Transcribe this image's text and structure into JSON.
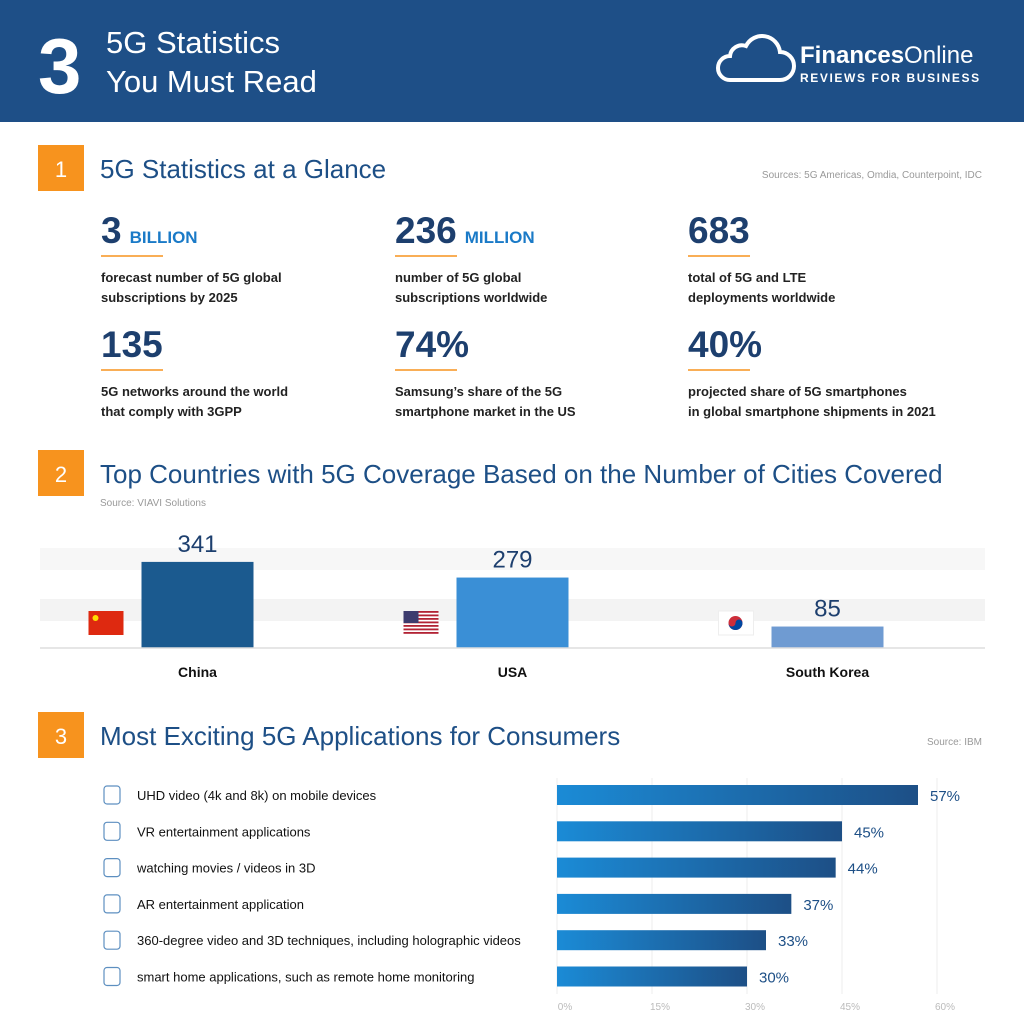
{
  "header": {
    "number": "3",
    "title_lines": [
      "5G Statistics",
      "You Must Read"
    ],
    "logo_bold": "Finances",
    "logo_light": "Online",
    "logo_tagline": "REVIEWS FOR BUSINESS"
  },
  "sections": [
    {
      "number": "1",
      "title": "5G Statistics at a Glance",
      "source": "Sources: 5G Americas, Omdia, Counterpoint, IDC"
    },
    {
      "number": "2",
      "title": "Top Countries with 5G Coverage Based on the Number of Cities Covered",
      "source": "Source: VIAVI Solutions"
    },
    {
      "number": "3",
      "title": "Most Exciting 5G Applications for Consumers",
      "source": "Source: IBM"
    }
  ],
  "stats": [
    {
      "value": "3",
      "unit": "BILLION",
      "description": [
        "forecast number of 5G global",
        "subscriptions by 2025"
      ]
    },
    {
      "value": "236",
      "unit": "MILLION",
      "description": [
        "number of 5G global",
        "subscriptions worldwide"
      ]
    },
    {
      "value": "683",
      "description": [
        "total of 5G and LTE",
        "deployments worldwide"
      ]
    },
    {
      "value": "135",
      "description": [
        "5G networks around the world",
        "that comply with 3GPP"
      ]
    },
    {
      "value": "74%",
      "description": [
        "Samsung’s share of the 5G",
        "smartphone market in the US"
      ]
    },
    {
      "value": "40%",
      "description": [
        "projected share of 5G smartphones",
        "in global smartphone shipments in 2021"
      ]
    }
  ],
  "chart_data": [
    {
      "type": "bar",
      "categories": [
        "China",
        "USA",
        "South Korea"
      ],
      "values": [
        341,
        279,
        85
      ],
      "colors": [
        "#1b5a8f",
        "#3a8fd6",
        "#6f9bd2"
      ],
      "ylim": [
        0,
        400
      ]
    },
    {
      "type": "hbar",
      "categories": [
        "UHD video (4k and 8k) on mobile devices",
        "VR entertainment applications",
        "watching movies / videos in 3D",
        "AR entertainment application",
        "360-degree video and 3D techniques, including holographic videos",
        "smart home applications, such as remote home monitoring"
      ],
      "values": [
        57,
        45,
        44,
        37,
        33,
        30
      ],
      "value_labels": [
        "57%",
        "45%",
        "44%",
        "37%",
        "33%",
        "30%"
      ],
      "xlim": [
        0,
        60
      ],
      "xticks": [
        {
          "value": 0,
          "label": "0%"
        },
        {
          "value": 15,
          "label": "15%"
        },
        {
          "value": 30,
          "label": "30%"
        },
        {
          "value": 45,
          "label": "45%"
        },
        {
          "value": 60,
          "label": "60%"
        }
      ],
      "color": "#1d4f86",
      "grid": true
    }
  ]
}
